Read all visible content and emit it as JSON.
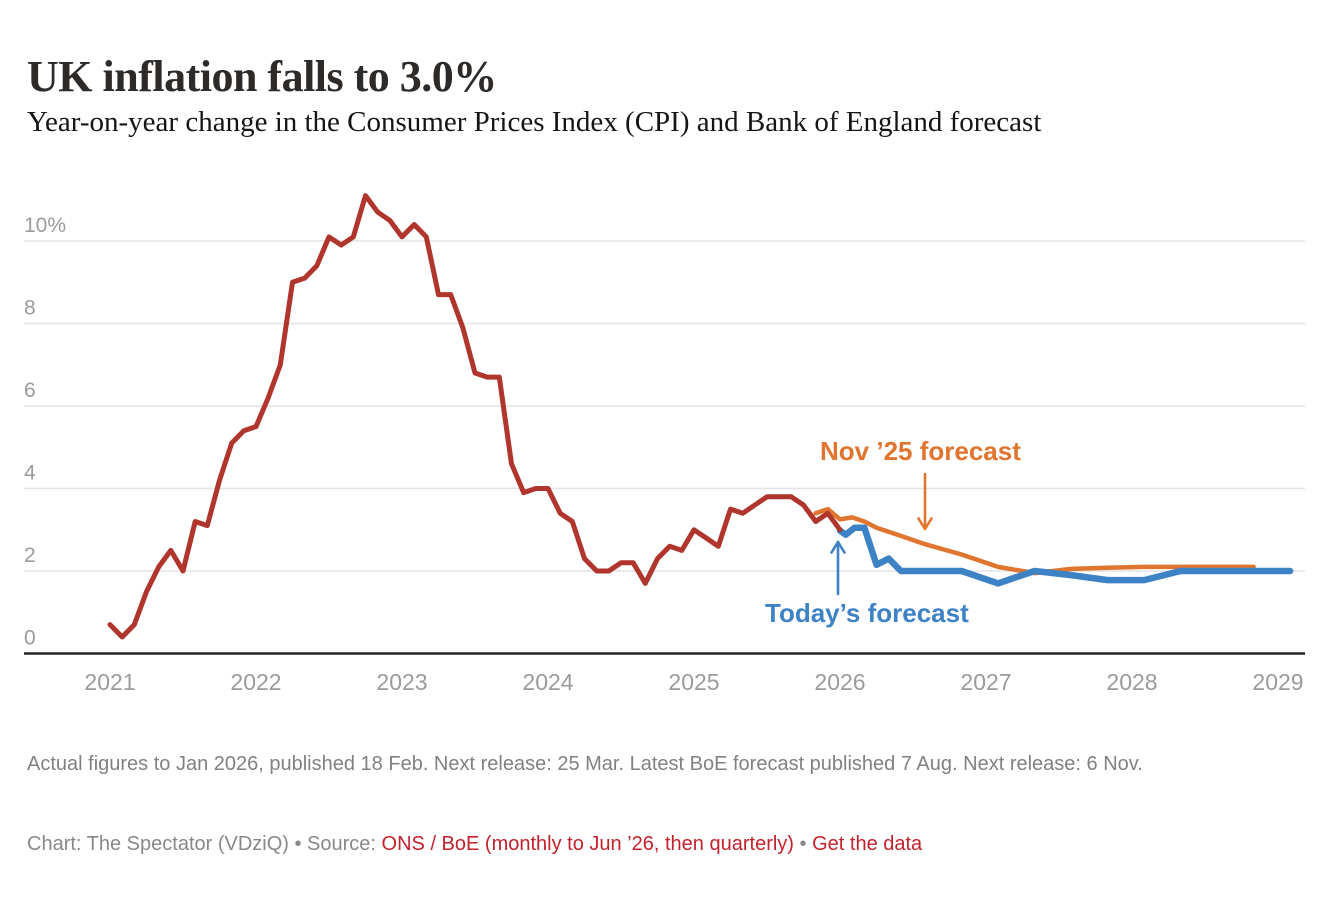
{
  "header": {
    "title": "UK inflation falls to 3.0%",
    "subtitle": "Year-on-year change in the Consumer Prices Index (CPI) and Bank of England forecast"
  },
  "annotations": {
    "nov25_label": "Nov ’25 forecast",
    "today_label": "Today’s forecast"
  },
  "notes": {
    "release_note": "Actual figures to Jan 2026, published 18 Feb. Next release: 25 Mar. Latest BoE forecast published 7 Aug. Next release: 6 Nov."
  },
  "credit": {
    "prefix": "Chart: The Spectator (VDziQ) • Source: ",
    "source_link": "ONS / BoE (monthly to Jun ’26, then quarterly)",
    "separator": " • ",
    "data_link": "Get the data"
  },
  "colors": {
    "actual": "#b0352c",
    "nov25": "#e0752f",
    "today": "#3e82c6",
    "link": "#c3222c",
    "axis_label": "#9b9b9b",
    "grid": "#e4e4e4",
    "axis_line": "#232323"
  },
  "chart_data": {
    "type": "line",
    "title": "UK inflation falls to 3.0%",
    "subtitle": "Year-on-year change in the Consumer Prices Index (CPI) and Bank of England forecast",
    "xlabel": "",
    "ylabel": "%",
    "ylim": [
      0,
      11.6
    ],
    "x_range": [
      2020.6,
      2029.3
    ],
    "grid": "horizontal",
    "legend_position": "inline-annotations",
    "xticks": [
      2021,
      2022,
      2023,
      2024,
      2025,
      2026,
      2027,
      2028,
      2029
    ],
    "yticks": [
      0,
      2,
      4,
      6,
      8,
      10
    ],
    "ytick_labels": [
      "0",
      "2",
      "4",
      "6",
      "8",
      "10%"
    ],
    "series": [
      {
        "name": "CPI actual (to Jan 2026)",
        "color_key": "actual",
        "z": 3,
        "freq": "monthly",
        "start": 2021.0,
        "values": [
          0.7,
          0.4,
          0.7,
          1.5,
          2.1,
          2.5,
          2.0,
          3.2,
          3.1,
          4.2,
          5.1,
          5.4,
          5.5,
          6.2,
          7.0,
          9.0,
          9.1,
          9.4,
          10.1,
          9.9,
          10.1,
          11.1,
          10.7,
          10.5,
          10.1,
          10.4,
          10.1,
          8.7,
          8.7,
          7.9,
          6.8,
          6.7,
          6.7,
          4.6,
          3.9,
          4.0,
          4.0,
          3.4,
          3.2,
          2.3,
          2.0,
          2.0,
          2.2,
          2.2,
          1.7,
          2.3,
          2.6,
          2.5,
          3.0,
          2.8,
          2.6,
          3.5,
          3.4,
          3.6,
          3.8,
          3.8,
          3.8,
          3.6,
          3.2,
          3.4,
          3.0
        ]
      },
      {
        "name": "Nov ’25 forecast",
        "color_key": "nov25",
        "z": 1,
        "freq": "mixed (monthly to Jun ’26, then quarterly)",
        "points": [
          [
            2025.833,
            3.4
          ],
          [
            2025.917,
            3.5
          ],
          [
            2026.0,
            3.25
          ],
          [
            2026.083,
            3.3
          ],
          [
            2026.167,
            3.2
          ],
          [
            2026.25,
            3.05
          ],
          [
            2026.333,
            2.95
          ],
          [
            2026.417,
            2.85
          ],
          [
            2026.583,
            2.65
          ],
          [
            2026.833,
            2.4
          ],
          [
            2027.083,
            2.1
          ],
          [
            2027.333,
            1.95
          ],
          [
            2027.583,
            2.05
          ],
          [
            2027.833,
            2.08
          ],
          [
            2028.083,
            2.1
          ],
          [
            2028.333,
            2.1
          ],
          [
            2028.583,
            2.1
          ],
          [
            2028.833,
            2.1
          ]
        ]
      },
      {
        "name": "Today’s forecast",
        "color_key": "today",
        "z": 2,
        "freq": "mixed (monthly to Jun ’26, then quarterly)",
        "points": [
          [
            2026.0,
            2.98
          ],
          [
            2026.04,
            2.88
          ],
          [
            2026.1,
            3.05
          ],
          [
            2026.167,
            3.05
          ],
          [
            2026.25,
            2.15
          ],
          [
            2026.333,
            2.3
          ],
          [
            2026.417,
            2.0
          ],
          [
            2026.583,
            2.0
          ],
          [
            2026.833,
            2.0
          ],
          [
            2027.083,
            1.7
          ],
          [
            2027.333,
            2.0
          ],
          [
            2027.583,
            1.9
          ],
          [
            2027.833,
            1.78
          ],
          [
            2028.083,
            1.78
          ],
          [
            2028.333,
            2.0
          ],
          [
            2028.583,
            2.0
          ],
          [
            2028.833,
            2.0
          ],
          [
            2029.083,
            2.0
          ]
        ]
      }
    ]
  }
}
